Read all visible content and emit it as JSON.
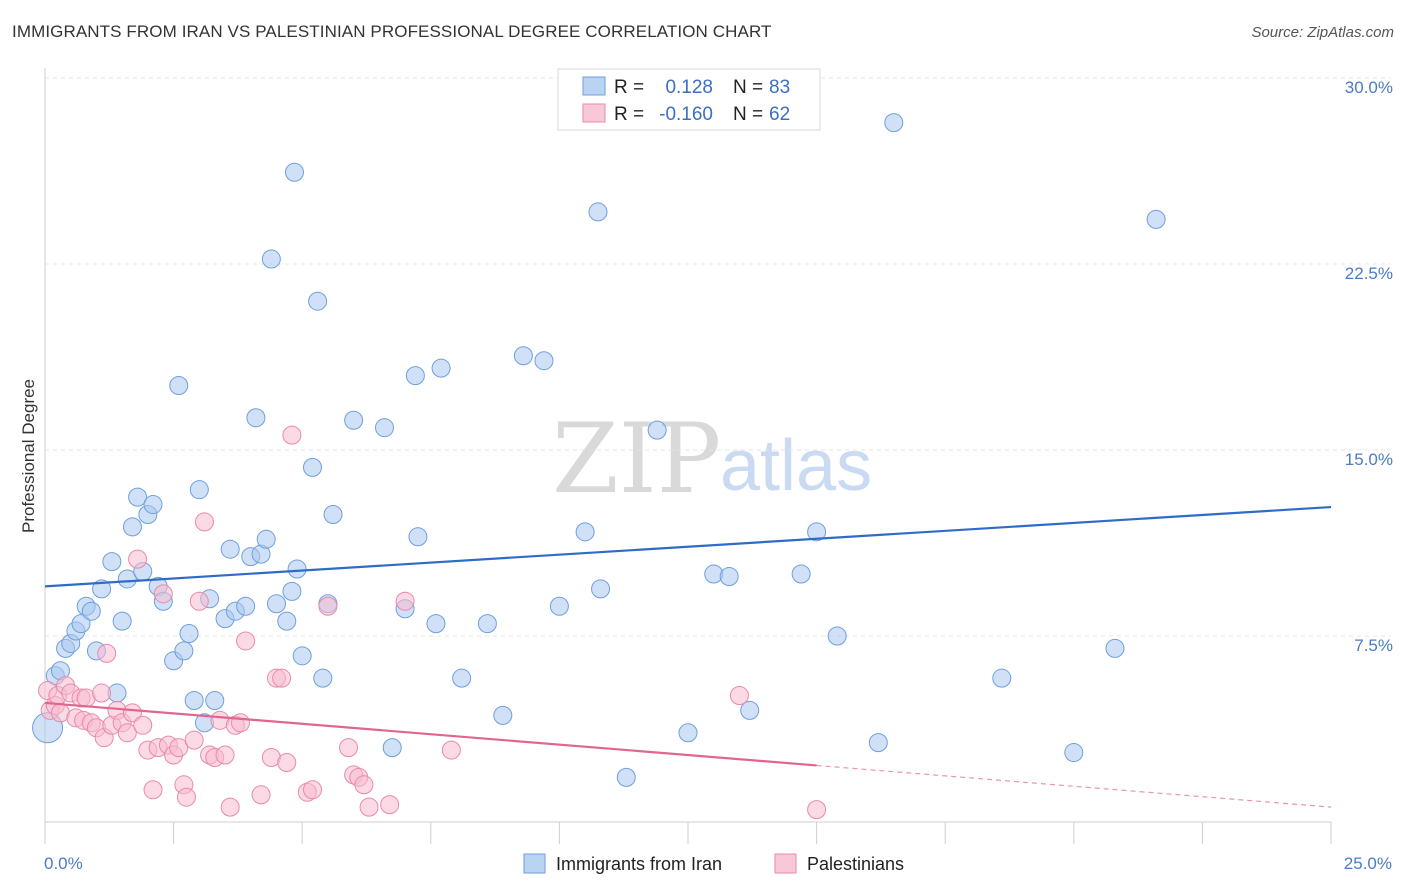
{
  "title": "IMMIGRANTS FROM IRAN VS PALESTINIAN PROFESSIONAL DEGREE CORRELATION CHART",
  "source": "Source: ZipAtlas.com",
  "watermark": {
    "zip": "ZIP",
    "atlas": "atlas"
  },
  "chart_data": {
    "type": "scatter",
    "ylabel": "Professional Degree",
    "xlim": [
      0,
      25
    ],
    "ylim": [
      0,
      30
    ],
    "x_tick_labels": [
      "0.0%",
      "25.0%"
    ],
    "y_ticks": [
      7.5,
      15.0,
      22.5,
      30.0
    ],
    "y_tick_labels": [
      "7.5%",
      "15.0%",
      "22.5%",
      "30.0%"
    ],
    "grid": true,
    "legend_position": "top-center",
    "legend": [
      {
        "r_label": "R =",
        "r_value": "0.128",
        "n_label": "N =",
        "n_value": "83"
      },
      {
        "r_label": "R =",
        "r_value": "-0.160",
        "n_label": "N =",
        "n_value": "62"
      }
    ],
    "series": [
      {
        "name": "Immigrants from Iran",
        "color": "#a9c8f0",
        "edge": "#6f9fdc",
        "line_color": "#2e6cc7",
        "trend": {
          "x": [
            0,
            25
          ],
          "y": [
            9.5,
            12.7
          ],
          "dashed_from": null
        },
        "points": [
          [
            0.05,
            3.8
          ],
          [
            0.2,
            5.9
          ],
          [
            0.3,
            6.1
          ],
          [
            0.4,
            7.0
          ],
          [
            0.5,
            7.2
          ],
          [
            0.6,
            7.7
          ],
          [
            0.7,
            8.0
          ],
          [
            0.8,
            8.7
          ],
          [
            0.9,
            8.5
          ],
          [
            1.0,
            6.9
          ],
          [
            1.1,
            9.4
          ],
          [
            1.3,
            10.5
          ],
          [
            1.4,
            5.2
          ],
          [
            1.5,
            8.1
          ],
          [
            1.6,
            9.8
          ],
          [
            1.7,
            11.9
          ],
          [
            1.8,
            13.1
          ],
          [
            1.9,
            10.1
          ],
          [
            2.0,
            12.4
          ],
          [
            2.1,
            12.8
          ],
          [
            2.2,
            9.5
          ],
          [
            2.3,
            8.9
          ],
          [
            2.5,
            6.5
          ],
          [
            2.6,
            17.6
          ],
          [
            2.7,
            6.9
          ],
          [
            2.8,
            7.6
          ],
          [
            2.9,
            4.9
          ],
          [
            3.0,
            13.4
          ],
          [
            3.1,
            4.0
          ],
          [
            3.2,
            9.0
          ],
          [
            3.3,
            4.9
          ],
          [
            3.5,
            8.2
          ],
          [
            3.6,
            11.0
          ],
          [
            3.7,
            8.5
          ],
          [
            3.9,
            8.7
          ],
          [
            4.0,
            10.7
          ],
          [
            4.1,
            16.3
          ],
          [
            4.2,
            10.8
          ],
          [
            4.3,
            11.4
          ],
          [
            4.4,
            22.7
          ],
          [
            4.5,
            8.8
          ],
          [
            4.7,
            8.1
          ],
          [
            4.8,
            9.3
          ],
          [
            4.85,
            26.2
          ],
          [
            4.9,
            10.2
          ],
          [
            5.0,
            6.7
          ],
          [
            5.2,
            14.3
          ],
          [
            5.3,
            21.0
          ],
          [
            5.4,
            5.8
          ],
          [
            5.5,
            8.8
          ],
          [
            5.6,
            12.4
          ],
          [
            6.0,
            16.2
          ],
          [
            6.6,
            15.9
          ],
          [
            6.75,
            3.0
          ],
          [
            7.0,
            8.6
          ],
          [
            7.2,
            18.0
          ],
          [
            7.25,
            11.5
          ],
          [
            7.6,
            8.0
          ],
          [
            7.7,
            18.3
          ],
          [
            8.1,
            5.8
          ],
          [
            8.6,
            8.0
          ],
          [
            8.9,
            4.3
          ],
          [
            9.3,
            18.8
          ],
          [
            9.7,
            18.6
          ],
          [
            10.0,
            8.7
          ],
          [
            10.5,
            11.7
          ],
          [
            10.75,
            24.6
          ],
          [
            10.8,
            9.4
          ],
          [
            11.3,
            1.8
          ],
          [
            11.9,
            15.8
          ],
          [
            12.5,
            3.6
          ],
          [
            13.0,
            10.0
          ],
          [
            13.3,
            9.9
          ],
          [
            13.7,
            4.5
          ],
          [
            14.7,
            10.0
          ],
          [
            15.0,
            11.7
          ],
          [
            15.4,
            7.5
          ],
          [
            16.2,
            3.2
          ],
          [
            16.5,
            28.2
          ],
          [
            18.6,
            5.8
          ],
          [
            20.0,
            2.8
          ],
          [
            20.8,
            7.0
          ],
          [
            21.6,
            24.3
          ]
        ]
      },
      {
        "name": "Palestinians",
        "color": "#f7bcd0",
        "edge": "#e98aab",
        "line_color": "#e06690",
        "trend": {
          "x": [
            0,
            25
          ],
          "y": [
            4.8,
            0.6
          ],
          "dashed_from": 15.0
        },
        "points": [
          [
            0.05,
            5.3
          ],
          [
            0.1,
            4.5
          ],
          [
            0.2,
            4.7
          ],
          [
            0.25,
            5.1
          ],
          [
            0.3,
            4.4
          ],
          [
            0.4,
            5.5
          ],
          [
            0.5,
            5.2
          ],
          [
            0.6,
            4.2
          ],
          [
            0.7,
            5.0
          ],
          [
            0.75,
            4.1
          ],
          [
            0.8,
            5.0
          ],
          [
            0.9,
            4.0
          ],
          [
            1.0,
            3.8
          ],
          [
            1.1,
            5.2
          ],
          [
            1.15,
            3.4
          ],
          [
            1.2,
            6.8
          ],
          [
            1.3,
            3.9
          ],
          [
            1.4,
            4.5
          ],
          [
            1.5,
            4.0
          ],
          [
            1.6,
            3.6
          ],
          [
            1.7,
            4.4
          ],
          [
            1.8,
            10.6
          ],
          [
            1.9,
            3.9
          ],
          [
            2.0,
            2.9
          ],
          [
            2.1,
            1.3
          ],
          [
            2.2,
            3.0
          ],
          [
            2.3,
            9.2
          ],
          [
            2.4,
            3.1
          ],
          [
            2.5,
            2.7
          ],
          [
            2.6,
            3.0
          ],
          [
            2.7,
            1.5
          ],
          [
            2.75,
            1.0
          ],
          [
            2.9,
            3.3
          ],
          [
            3.0,
            8.9
          ],
          [
            3.1,
            12.1
          ],
          [
            3.2,
            2.7
          ],
          [
            3.3,
            2.6
          ],
          [
            3.4,
            4.1
          ],
          [
            3.5,
            2.7
          ],
          [
            3.6,
            0.6
          ],
          [
            3.7,
            3.9
          ],
          [
            3.8,
            4.0
          ],
          [
            3.9,
            7.3
          ],
          [
            4.2,
            1.1
          ],
          [
            4.4,
            2.6
          ],
          [
            4.5,
            5.8
          ],
          [
            4.6,
            5.8
          ],
          [
            4.7,
            2.4
          ],
          [
            4.8,
            15.6
          ],
          [
            5.1,
            1.2
          ],
          [
            5.2,
            1.3
          ],
          [
            5.5,
            8.7
          ],
          [
            5.9,
            3.0
          ],
          [
            6.0,
            1.9
          ],
          [
            6.1,
            1.8
          ],
          [
            6.2,
            1.5
          ],
          [
            6.3,
            0.6
          ],
          [
            6.7,
            0.7
          ],
          [
            7.0,
            8.9
          ],
          [
            7.9,
            2.9
          ],
          [
            13.5,
            5.1
          ],
          [
            15.0,
            0.5
          ]
        ]
      }
    ]
  }
}
